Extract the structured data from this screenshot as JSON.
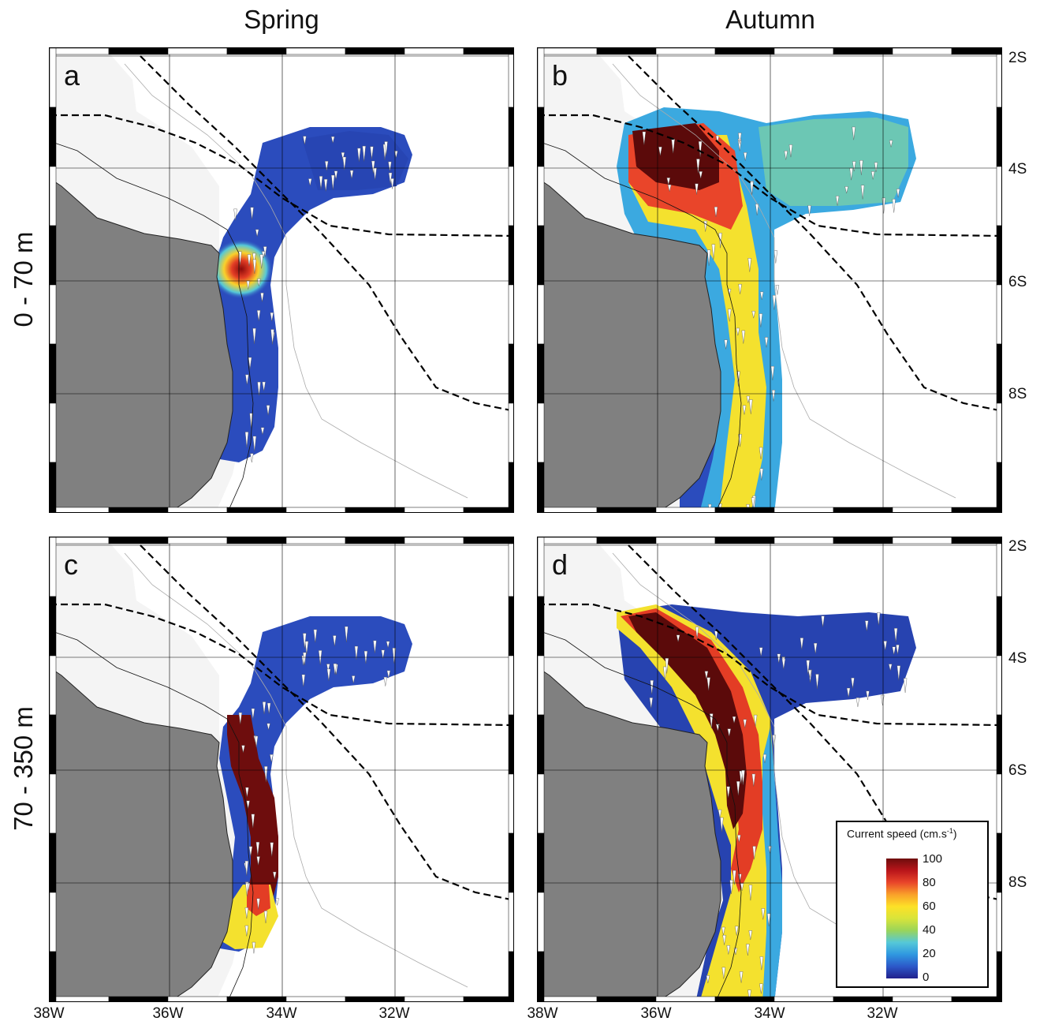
{
  "columns": [
    "Spring",
    "Autumn"
  ],
  "rows": [
    "0 - 70 m",
    "70 - 350 m"
  ],
  "panels": [
    {
      "id": "a",
      "season": "Spring",
      "depth": "0 - 70 m"
    },
    {
      "id": "b",
      "season": "Autumn",
      "depth": "0 - 70 m"
    },
    {
      "id": "c",
      "season": "Spring",
      "depth": "70 - 350 m"
    },
    {
      "id": "d",
      "season": "Autumn",
      "depth": "70 - 350 m"
    }
  ],
  "lat_labels": [
    "2S",
    "4S",
    "6S",
    "8S"
  ],
  "lon_labels": [
    "38W",
    "36W",
    "34W",
    "32W"
  ],
  "legend": {
    "title": "Current speed (cm.s",
    "title_sup": "-1",
    "title_end": ")",
    "ticks": [
      "100",
      "80",
      "60",
      "40",
      "20",
      "0"
    ]
  },
  "colors": {
    "land": "#808080",
    "shelf": "#f4f4f4",
    "ocean": "#ffffff",
    "low_speed": "#21208c",
    "high_speed": "#6e0d0d"
  }
}
